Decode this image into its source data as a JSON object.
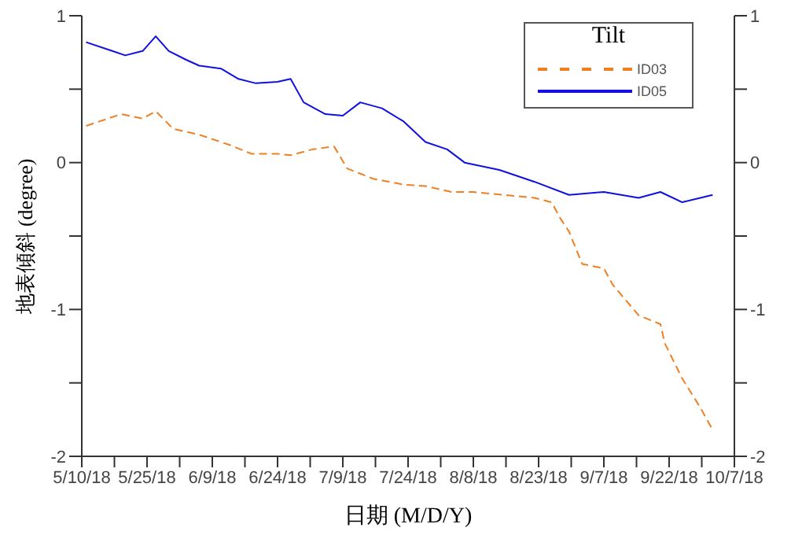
{
  "chart_data": {
    "type": "line",
    "xlabel": "日期 (M/D/Y)",
    "ylabel": "地表傾斜 (degree)",
    "legend_title": "Tilt",
    "legend": "top right",
    "marker": "none",
    "xlim": [
      "--05-10",
      "--10-07"
    ],
    "xticks": [
      {
        "value": "--05-10",
        "label": "5/10/18"
      },
      {
        "value": "--05-17T12:00",
        "label": null
      },
      {
        "value": "--05-25",
        "label": "5/25/18"
      },
      {
        "value": "--06-01T12:00",
        "label": null
      },
      {
        "value": "--06-09",
        "label": "6/9/18"
      },
      {
        "value": "--06-16T12:00",
        "label": null
      },
      {
        "value": "--06-24",
        "label": "6/24/18"
      },
      {
        "value": "--07-01T12:00",
        "label": null
      },
      {
        "value": "--07-09",
        "label": "7/9/18"
      },
      {
        "value": "--07-16T12:00",
        "label": null
      },
      {
        "value": "--07-24",
        "label": "7/24/18"
      },
      {
        "value": "--07-31T12:00",
        "label": null
      },
      {
        "value": "--08-08",
        "label": "8/8/18"
      },
      {
        "value": "--08-15T12:00",
        "label": null
      },
      {
        "value": "--08-23",
        "label": "8/23/18"
      },
      {
        "value": "--08-30T12:00",
        "label": null
      },
      {
        "value": "--09-07",
        "label": "9/7/18"
      },
      {
        "value": "--09-14T12:00",
        "label": null
      },
      {
        "value": "--09-22",
        "label": "9/22/18"
      },
      {
        "value": "--09-29T12:00",
        "label": null
      },
      {
        "value": "--10-07",
        "label": "10/7/18"
      }
    ],
    "ylim": [
      -2,
      1
    ],
    "yticks": [
      -2,
      {
        "value": -1.5,
        "label": null
      },
      -1,
      {
        "value": -0.5,
        "label": null
      },
      0,
      {
        "value": 0.5,
        "label": null
      },
      1
    ],
    "y2lim": [
      -2,
      1
    ],
    "y2ticks": [
      -2,
      {
        "value": -1.5,
        "label": null
      },
      -1,
      {
        "value": -0.5,
        "label": null
      },
      0,
      {
        "value": 0.5,
        "label": null
      },
      1
    ],
    "series": [
      {
        "name": "ID03",
        "color": "#f07f22",
        "line_style": "dashed",
        "x": [
          "--05-11",
          "--05-19",
          "--05-24",
          "--05-27",
          "--05-31",
          "--06-06",
          "--06-13",
          "--06-18",
          "--06-24",
          "--06-27",
          "--07-02",
          "--07-07",
          "--07-10",
          "--07-16",
          "--07-23",
          "--07-28",
          "--08-03",
          "--08-08",
          "--08-22",
          "--08-26",
          "--08-28",
          "--08-30",
          "--09-02",
          "--09-07",
          "--09-09",
          "--09-15",
          "--09-20",
          "--09-21",
          "--09-25",
          "--09-29",
          "--10-02"
        ],
        "values": [
          0.25,
          0.33,
          0.3,
          0.35,
          0.23,
          0.19,
          0.12,
          0.06,
          0.06,
          0.05,
          0.09,
          0.11,
          -0.04,
          -0.11,
          -0.15,
          -0.16,
          -0.2,
          -0.2,
          -0.24,
          -0.27,
          -0.38,
          -0.47,
          -0.69,
          -0.72,
          -0.83,
          -1.04,
          -1.1,
          -1.23,
          -1.47,
          -1.66,
          -1.82
        ]
      },
      {
        "name": "ID05",
        "color": "#1010e0",
        "line_style": "solid",
        "x": [
          "--05-11",
          "--05-17",
          "--05-20",
          "--05-24",
          "--05-27",
          "--05-30",
          "--06-03",
          "--06-06",
          "--06-11",
          "--06-15",
          "--06-19",
          "--06-24",
          "--06-27",
          "--06-30",
          "--07-05",
          "--07-09",
          "--07-13",
          "--07-18",
          "--07-23",
          "--07-28",
          "--08-02",
          "--08-06",
          "--08-14",
          "--08-22",
          "--08-30",
          "--09-07",
          "--09-15",
          "--09-20",
          "--09-25",
          "--10-02"
        ],
        "values": [
          0.82,
          0.76,
          0.73,
          0.76,
          0.86,
          0.76,
          0.7,
          0.66,
          0.64,
          0.57,
          0.54,
          0.55,
          0.57,
          0.41,
          0.33,
          0.32,
          0.41,
          0.37,
          0.28,
          0.14,
          0.09,
          0.0,
          -0.05,
          -0.13,
          -0.22,
          -0.2,
          -0.24,
          -0.2,
          -0.27,
          -0.22
        ]
      }
    ]
  }
}
